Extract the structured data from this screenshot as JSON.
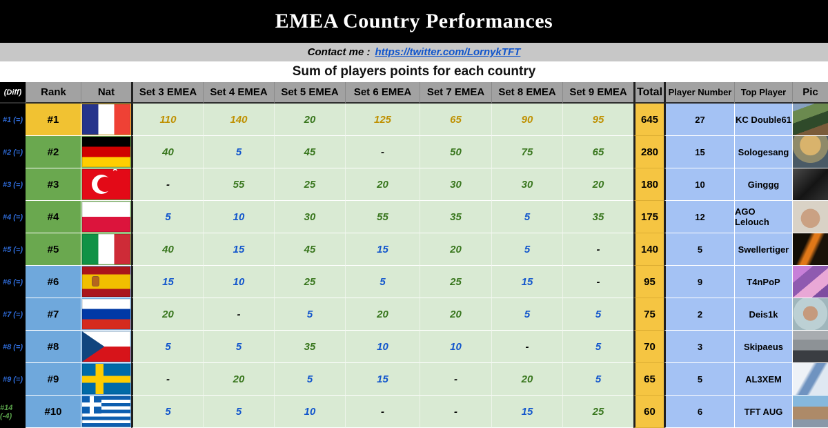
{
  "title": "EMEA Country Performances",
  "contact": {
    "label": "Contact me :",
    "link_text": "https://twitter.com/LornykTFT"
  },
  "subtitle": "Sum of players points for each country",
  "columns": {
    "diff": "(Diff)",
    "rank": "Rank",
    "nat": "Nat",
    "sets": [
      "Set 3 EMEA",
      "Set 4 EMEA",
      "Set 5 EMEA",
      "Set 6 EMEA",
      "Set 7 EMEA",
      "Set 8 EMEA",
      "Set 9 EMEA"
    ],
    "total": "Total",
    "player_number": "Player Number",
    "top_player": "Top Player",
    "pic": "Pic"
  },
  "colors": {
    "rank_gold": "#f1c232",
    "rank_green": "#6aa84f",
    "rank_blue": "#6fa8dc",
    "set_cell_bg": "#d9ead3",
    "total_bg": "#f5c542",
    "blue_col_bg": "#a4c2f4",
    "value_gold": "#bf9000",
    "value_green": "#38761d",
    "value_blue": "#1155cc",
    "diff_blue": "#2e6bd8",
    "diff_green": "#59a14a"
  },
  "rows": [
    {
      "diff": "#1 (=)",
      "diff_tone": "blue",
      "rank": "#1",
      "tier": "gold",
      "flag": "fr",
      "country": "France",
      "sets": [
        {
          "v": "110",
          "tone": "gold"
        },
        {
          "v": "140",
          "tone": "gold"
        },
        {
          "v": "20",
          "tone": "green"
        },
        {
          "v": "125",
          "tone": "gold"
        },
        {
          "v": "65",
          "tone": "gold"
        },
        {
          "v": "90",
          "tone": "gold"
        },
        {
          "v": "95",
          "tone": "gold"
        }
      ],
      "total": "645",
      "player_number": "27",
      "top_player": "KC Double61"
    },
    {
      "diff": "#2 (=)",
      "diff_tone": "blue",
      "rank": "#2",
      "tier": "green",
      "flag": "de",
      "country": "Germany",
      "sets": [
        {
          "v": "40",
          "tone": "green"
        },
        {
          "v": "5",
          "tone": "blue"
        },
        {
          "v": "45",
          "tone": "green"
        },
        {
          "v": "-",
          "tone": "dash"
        },
        {
          "v": "50",
          "tone": "green"
        },
        {
          "v": "75",
          "tone": "green"
        },
        {
          "v": "65",
          "tone": "green"
        }
      ],
      "total": "280",
      "player_number": "15",
      "top_player": "Sologesang"
    },
    {
      "diff": "#3 (=)",
      "diff_tone": "blue",
      "rank": "#3",
      "tier": "green",
      "flag": "tr",
      "country": "Turkey",
      "sets": [
        {
          "v": "-",
          "tone": "dash"
        },
        {
          "v": "55",
          "tone": "green"
        },
        {
          "v": "25",
          "tone": "green"
        },
        {
          "v": "20",
          "tone": "green"
        },
        {
          "v": "30",
          "tone": "green"
        },
        {
          "v": "30",
          "tone": "green"
        },
        {
          "v": "20",
          "tone": "green"
        }
      ],
      "total": "180",
      "player_number": "10",
      "top_player": "Ginggg"
    },
    {
      "diff": "#4 (=)",
      "diff_tone": "blue",
      "rank": "#4",
      "tier": "green",
      "flag": "pl",
      "country": "Poland",
      "sets": [
        {
          "v": "5",
          "tone": "blue"
        },
        {
          "v": "10",
          "tone": "blue"
        },
        {
          "v": "30",
          "tone": "green"
        },
        {
          "v": "55",
          "tone": "green"
        },
        {
          "v": "35",
          "tone": "green"
        },
        {
          "v": "5",
          "tone": "blue"
        },
        {
          "v": "35",
          "tone": "green"
        }
      ],
      "total": "175",
      "player_number": "12",
      "top_player": "AGO Lelouch"
    },
    {
      "diff": "#5 (=)",
      "diff_tone": "blue",
      "rank": "#5",
      "tier": "green",
      "flag": "it",
      "country": "Italy",
      "sets": [
        {
          "v": "40",
          "tone": "green"
        },
        {
          "v": "15",
          "tone": "blue"
        },
        {
          "v": "45",
          "tone": "green"
        },
        {
          "v": "15",
          "tone": "blue"
        },
        {
          "v": "20",
          "tone": "green"
        },
        {
          "v": "5",
          "tone": "blue"
        },
        {
          "v": "-",
          "tone": "dash"
        }
      ],
      "total": "140",
      "player_number": "5",
      "top_player": "Swellertiger"
    },
    {
      "diff": "#6 (=)",
      "diff_tone": "blue",
      "rank": "#6",
      "tier": "blue",
      "flag": "es",
      "country": "Spain",
      "sets": [
        {
          "v": "15",
          "tone": "blue"
        },
        {
          "v": "10",
          "tone": "blue"
        },
        {
          "v": "25",
          "tone": "green"
        },
        {
          "v": "5",
          "tone": "blue"
        },
        {
          "v": "25",
          "tone": "green"
        },
        {
          "v": "15",
          "tone": "blue"
        },
        {
          "v": "-",
          "tone": "dash"
        }
      ],
      "total": "95",
      "player_number": "9",
      "top_player": "T4nPoP"
    },
    {
      "diff": "#7 (=)",
      "diff_tone": "blue",
      "rank": "#7",
      "tier": "blue",
      "flag": "ru",
      "country": "Russia",
      "sets": [
        {
          "v": "20",
          "tone": "green"
        },
        {
          "v": "-",
          "tone": "dash"
        },
        {
          "v": "5",
          "tone": "blue"
        },
        {
          "v": "20",
          "tone": "green"
        },
        {
          "v": "20",
          "tone": "green"
        },
        {
          "v": "5",
          "tone": "blue"
        },
        {
          "v": "5",
          "tone": "blue"
        }
      ],
      "total": "75",
      "player_number": "2",
      "top_player": "Deis1k"
    },
    {
      "diff": "#8 (=)",
      "diff_tone": "blue",
      "rank": "#8",
      "tier": "blue",
      "flag": "cz",
      "country": "Czech Republic",
      "sets": [
        {
          "v": "5",
          "tone": "blue"
        },
        {
          "v": "5",
          "tone": "blue"
        },
        {
          "v": "35",
          "tone": "green"
        },
        {
          "v": "10",
          "tone": "blue"
        },
        {
          "v": "10",
          "tone": "blue"
        },
        {
          "v": "-",
          "tone": "dash"
        },
        {
          "v": "5",
          "tone": "blue"
        }
      ],
      "total": "70",
      "player_number": "3",
      "top_player": "Skipaeus"
    },
    {
      "diff": "#9 (=)",
      "diff_tone": "blue",
      "rank": "#9",
      "tier": "blue",
      "flag": "se",
      "country": "Sweden",
      "sets": [
        {
          "v": "-",
          "tone": "dash"
        },
        {
          "v": "20",
          "tone": "green"
        },
        {
          "v": "5",
          "tone": "blue"
        },
        {
          "v": "15",
          "tone": "blue"
        },
        {
          "v": "-",
          "tone": "dash"
        },
        {
          "v": "20",
          "tone": "green"
        },
        {
          "v": "5",
          "tone": "blue"
        }
      ],
      "total": "65",
      "player_number": "5",
      "top_player": "AL3XEM"
    },
    {
      "diff": "#14 (-4)",
      "diff_tone": "green",
      "rank": "#10",
      "tier": "blue",
      "flag": "gr",
      "country": "Greece",
      "sets": [
        {
          "v": "5",
          "tone": "blue"
        },
        {
          "v": "5",
          "tone": "blue"
        },
        {
          "v": "10",
          "tone": "blue"
        },
        {
          "v": "-",
          "tone": "dash"
        },
        {
          "v": "-",
          "tone": "dash"
        },
        {
          "v": "15",
          "tone": "blue"
        },
        {
          "v": "25",
          "tone": "green"
        }
      ],
      "total": "60",
      "player_number": "6",
      "top_player": "TFT AUG"
    }
  ]
}
